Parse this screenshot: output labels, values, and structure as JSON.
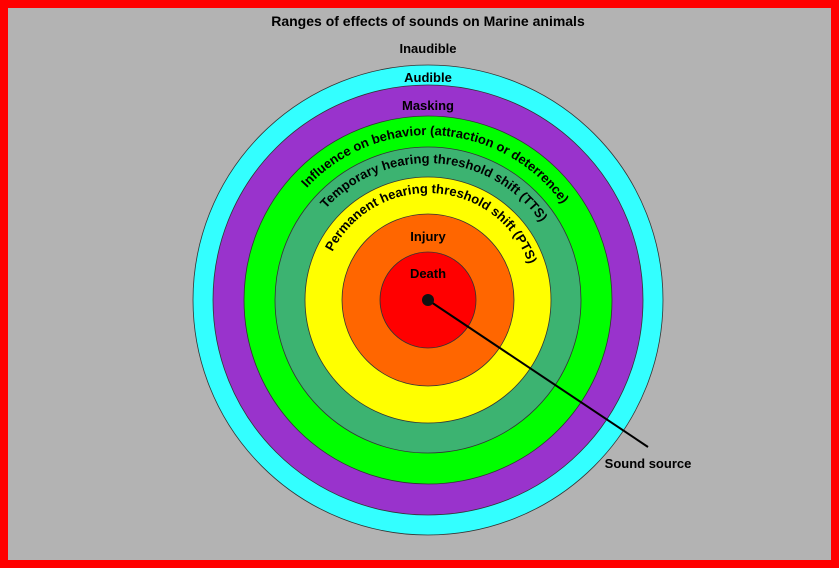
{
  "title": "Ranges of effects of sounds on Marine animals",
  "outer_label": "Inaudible",
  "zones": [
    {
      "label": "Audible"
    },
    {
      "label": "Masking"
    },
    {
      "label": "Influence on behavior (attraction or deterrence)"
    },
    {
      "label": "Temporary hearing threshold shift (TTS)"
    },
    {
      "label": "Permanent hearing threshold shift (PTS)"
    },
    {
      "label": "Injury"
    },
    {
      "label": "Death"
    }
  ],
  "source_label": "Sound source"
}
